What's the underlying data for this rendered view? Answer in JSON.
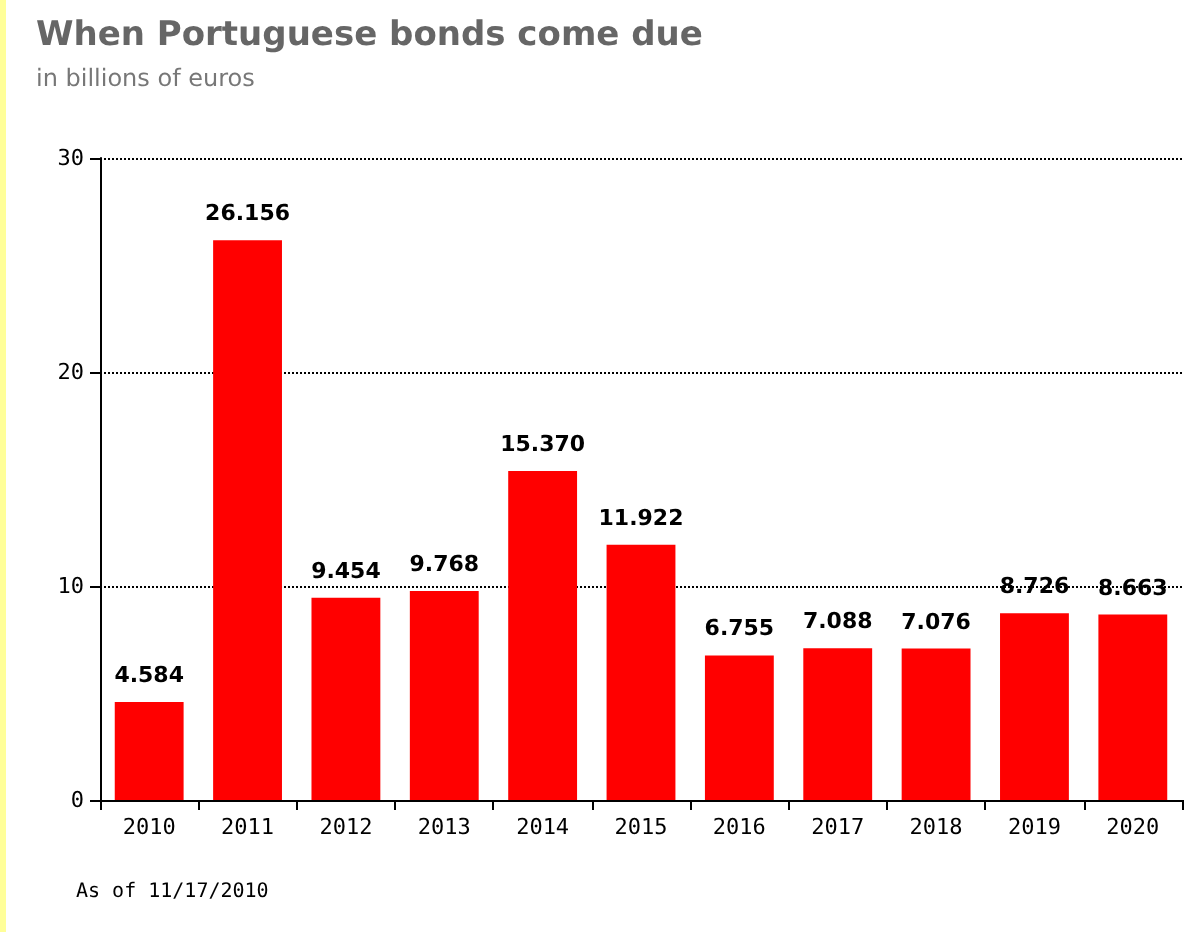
{
  "chart_data": {
    "type": "bar",
    "title": "When Portuguese bonds come due",
    "subtitle": "in billions of euros",
    "categories": [
      "2010",
      "2011",
      "2012",
      "2013",
      "2014",
      "2015",
      "2016",
      "2017",
      "2018",
      "2019",
      "2020"
    ],
    "values": [
      4.584,
      26.156,
      9.454,
      9.768,
      15.37,
      11.922,
      6.755,
      7.088,
      7.076,
      8.726,
      8.663
    ],
    "value_labels": [
      "4.584",
      "26.156",
      "9.454",
      "9.768",
      "15.370",
      "11.922",
      "6.755",
      "7.088",
      "7.076",
      "8.726",
      "8.663"
    ],
    "color": "#ff0000",
    "ylim": [
      0,
      30
    ],
    "yticks": [
      0,
      10,
      20,
      30
    ],
    "grid": "y",
    "annotations": [
      "As of 11/17/2010"
    ]
  }
}
